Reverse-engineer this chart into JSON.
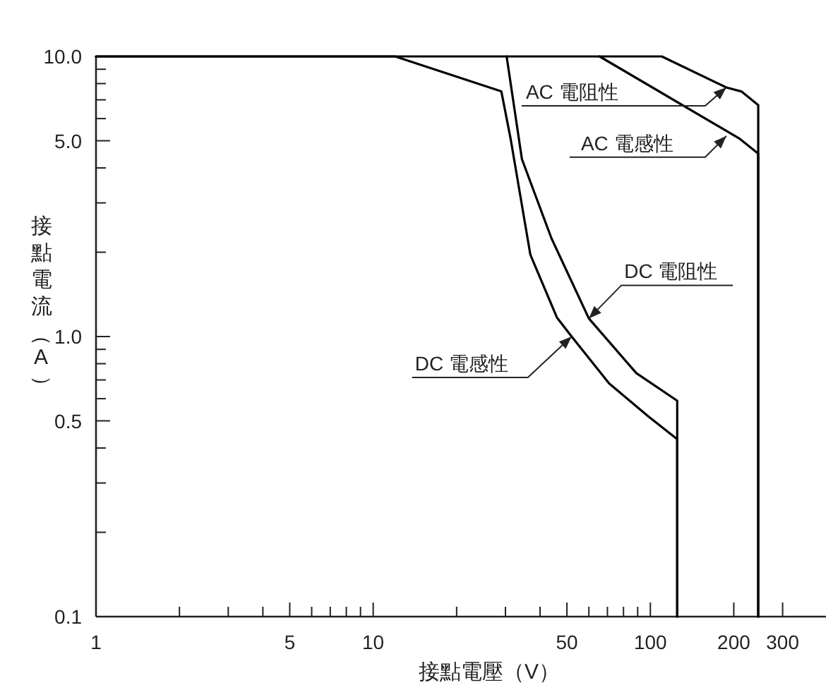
{
  "chart_data": {
    "type": "line",
    "xlabel": "接點電壓（V）",
    "ylabel": "接點電流（A）",
    "log": "xy",
    "grid": false,
    "xlim": [
      1,
      430
    ],
    "ylim": [
      0.1,
      10
    ],
    "xticks": [
      1,
      {
        "value": 2,
        "label": null
      },
      {
        "value": 3,
        "label": null
      },
      {
        "value": 4,
        "label": null
      },
      5,
      {
        "value": 6,
        "label": null
      },
      {
        "value": 7,
        "label": null
      },
      {
        "value": 8,
        "label": null
      },
      {
        "value": 9,
        "label": null
      },
      10,
      {
        "value": 20,
        "label": null
      },
      {
        "value": 30,
        "label": null
      },
      {
        "value": 40,
        "label": null
      },
      50,
      {
        "value": 60,
        "label": null
      },
      {
        "value": 70,
        "label": null
      },
      {
        "value": 80,
        "label": null
      },
      {
        "value": 90,
        "label": null
      },
      100,
      200,
      300
    ],
    "yticks": [
      0.1,
      {
        "value": 0.2,
        "label": null
      },
      {
        "value": 0.3,
        "label": null
      },
      {
        "value": 0.4,
        "label": null
      },
      0.5,
      {
        "value": 0.6,
        "label": null
      },
      {
        "value": 0.7,
        "label": null
      },
      {
        "value": 0.8,
        "label": null
      },
      {
        "value": 0.9,
        "label": null
      },
      {
        "value": 1,
        "label": "1.0"
      },
      {
        "value": 2,
        "label": null
      },
      {
        "value": 3,
        "label": null
      },
      {
        "value": 4,
        "label": null
      },
      {
        "value": 5,
        "label": "5.0"
      },
      {
        "value": 6,
        "label": null
      },
      {
        "value": 7,
        "label": null
      },
      {
        "value": 8,
        "label": null
      },
      {
        "value": 9,
        "label": null
      },
      {
        "value": 10,
        "label": "10.0"
      }
    ],
    "series": [
      {
        "color": "#000000",
        "x": [
          1,
          12,
          29,
          31.3,
          36.9,
          46,
          52,
          71,
          98,
          125,
          125
        ],
        "values": [
          10,
          10,
          7.5,
          5.1,
          1.96,
          1.17,
          1.0,
          0.68,
          0.52,
          0.43,
          0.1
        ]
      },
      {
        "color": "#000000",
        "x": [
          30.3,
          34.4,
          40.6,
          44,
          60,
          89,
          125,
          125
        ],
        "values": [
          10,
          4.3,
          2.77,
          2.24,
          1.16,
          0.74,
          0.59,
          0.1
        ]
      },
      {
        "color": "#000000",
        "x": [
          65.6,
          209,
          245,
          245
        ],
        "values": [
          10,
          5.1,
          4.5,
          0.1
        ]
      },
      {
        "color": "#000000",
        "x": [
          1,
          110,
          188,
          213,
          245,
          245
        ],
        "values": [
          10,
          10,
          7.75,
          7.5,
          6.7,
          0.1
        ]
      }
    ],
    "annotations": [
      {
        "text": "AC 電阻性",
        "x": 188,
        "y": 7.75
      },
      {
        "text": "AC 電感性",
        "x": 188,
        "y": 5.2
      },
      {
        "text": "DC 電阻性",
        "x": 60,
        "y": 1.16
      },
      {
        "text": "DC 電感性",
        "x": 52,
        "y": 1.0
      }
    ]
  }
}
